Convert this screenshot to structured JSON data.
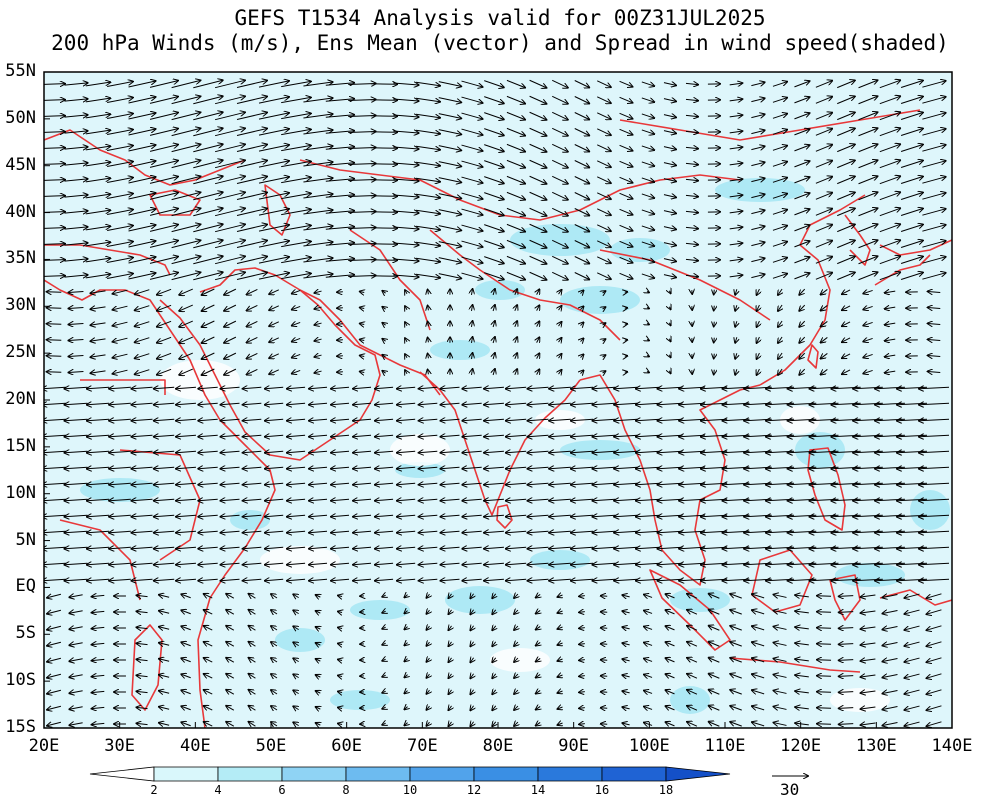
{
  "title_line1": "GEFS T1534 Analysis valid for 00Z31JUL2025",
  "title_line2": "200 hPa Winds (m/s), Ens Mean (vector) and Spread in wind speed(shaded)",
  "y_ticks": [
    "55N",
    "50N",
    "45N",
    "40N",
    "35N",
    "30N",
    "25N",
    "20N",
    "15N",
    "10N",
    "5N",
    "EQ",
    "5S",
    "10S",
    "15S"
  ],
  "x_ticks": [
    "20E",
    "30E",
    "40E",
    "50E",
    "60E",
    "70E",
    "80E",
    "90E",
    "100E",
    "110E",
    "120E",
    "130E",
    "140E"
  ],
  "colorbar": {
    "levels": [
      "2",
      "4",
      "6",
      "8",
      "10",
      "12",
      "14",
      "16",
      "18"
    ],
    "colors": [
      "#ffffff",
      "#d9f7fb",
      "#b4ecf6",
      "#8fd3f4",
      "#6dbbf0",
      "#51a3eb",
      "#3a8fe4",
      "#2a79dc",
      "#1f63d4",
      "#1450c8"
    ]
  },
  "reference_vector": {
    "value": "30"
  },
  "colors": {
    "coast": "#e8383a",
    "land_shade": "#def6fb",
    "spread_shade": "#aee9f5"
  }
}
